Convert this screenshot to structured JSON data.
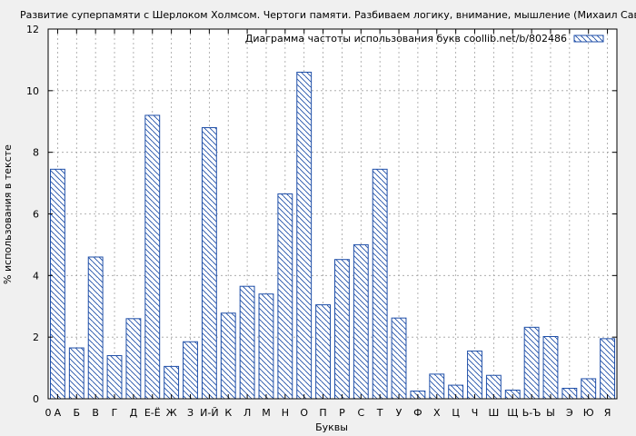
{
  "chart_data": {
    "type": "bar",
    "title": "Развитие суперпамяти с Шерлоком Холмсом. Чертоги памяти. Разбиваем логику, внимание, мышление (Михаил Савченко)",
    "xlabel": "Буквы",
    "ylabel": "% использования в тексте",
    "legend": {
      "label": "Диаграмма частоты использования букв coollib.net/b/802486",
      "placement": "top-right"
    },
    "ylim": [
      0,
      12
    ],
    "yticks": [
      0,
      2,
      4,
      6,
      8,
      10,
      12
    ],
    "x_origin_label": "0",
    "grid": true,
    "categories": [
      "А",
      "Б",
      "В",
      "Г",
      "Д",
      "Е-Ё",
      "Ж",
      "З",
      "И-Й",
      "К",
      "Л",
      "М",
      "Н",
      "О",
      "П",
      "Р",
      "С",
      "Т",
      "У",
      "Ф",
      "Х",
      "Ц",
      "Ч",
      "Ш",
      "Щ",
      "Ь-Ъ",
      "Ы",
      "Э",
      "Ю",
      "Я"
    ],
    "values": [
      7.45,
      1.65,
      4.6,
      1.4,
      2.6,
      9.2,
      1.05,
      1.85,
      8.8,
      2.78,
      3.65,
      3.4,
      6.65,
      10.6,
      3.05,
      4.52,
      5.0,
      7.45,
      2.62,
      0.25,
      0.8,
      0.44,
      1.55,
      0.76,
      0.28,
      2.32,
      2.02,
      0.34,
      0.65,
      1.95
    ],
    "colors": {
      "bar_stroke": "#1f4fa8",
      "hatch": "#1f4fa8",
      "bar_fill": "#ffffff",
      "background": "#f0f0f0",
      "plot_bg": "#ffffff",
      "grid": "#a0a0a0"
    }
  }
}
